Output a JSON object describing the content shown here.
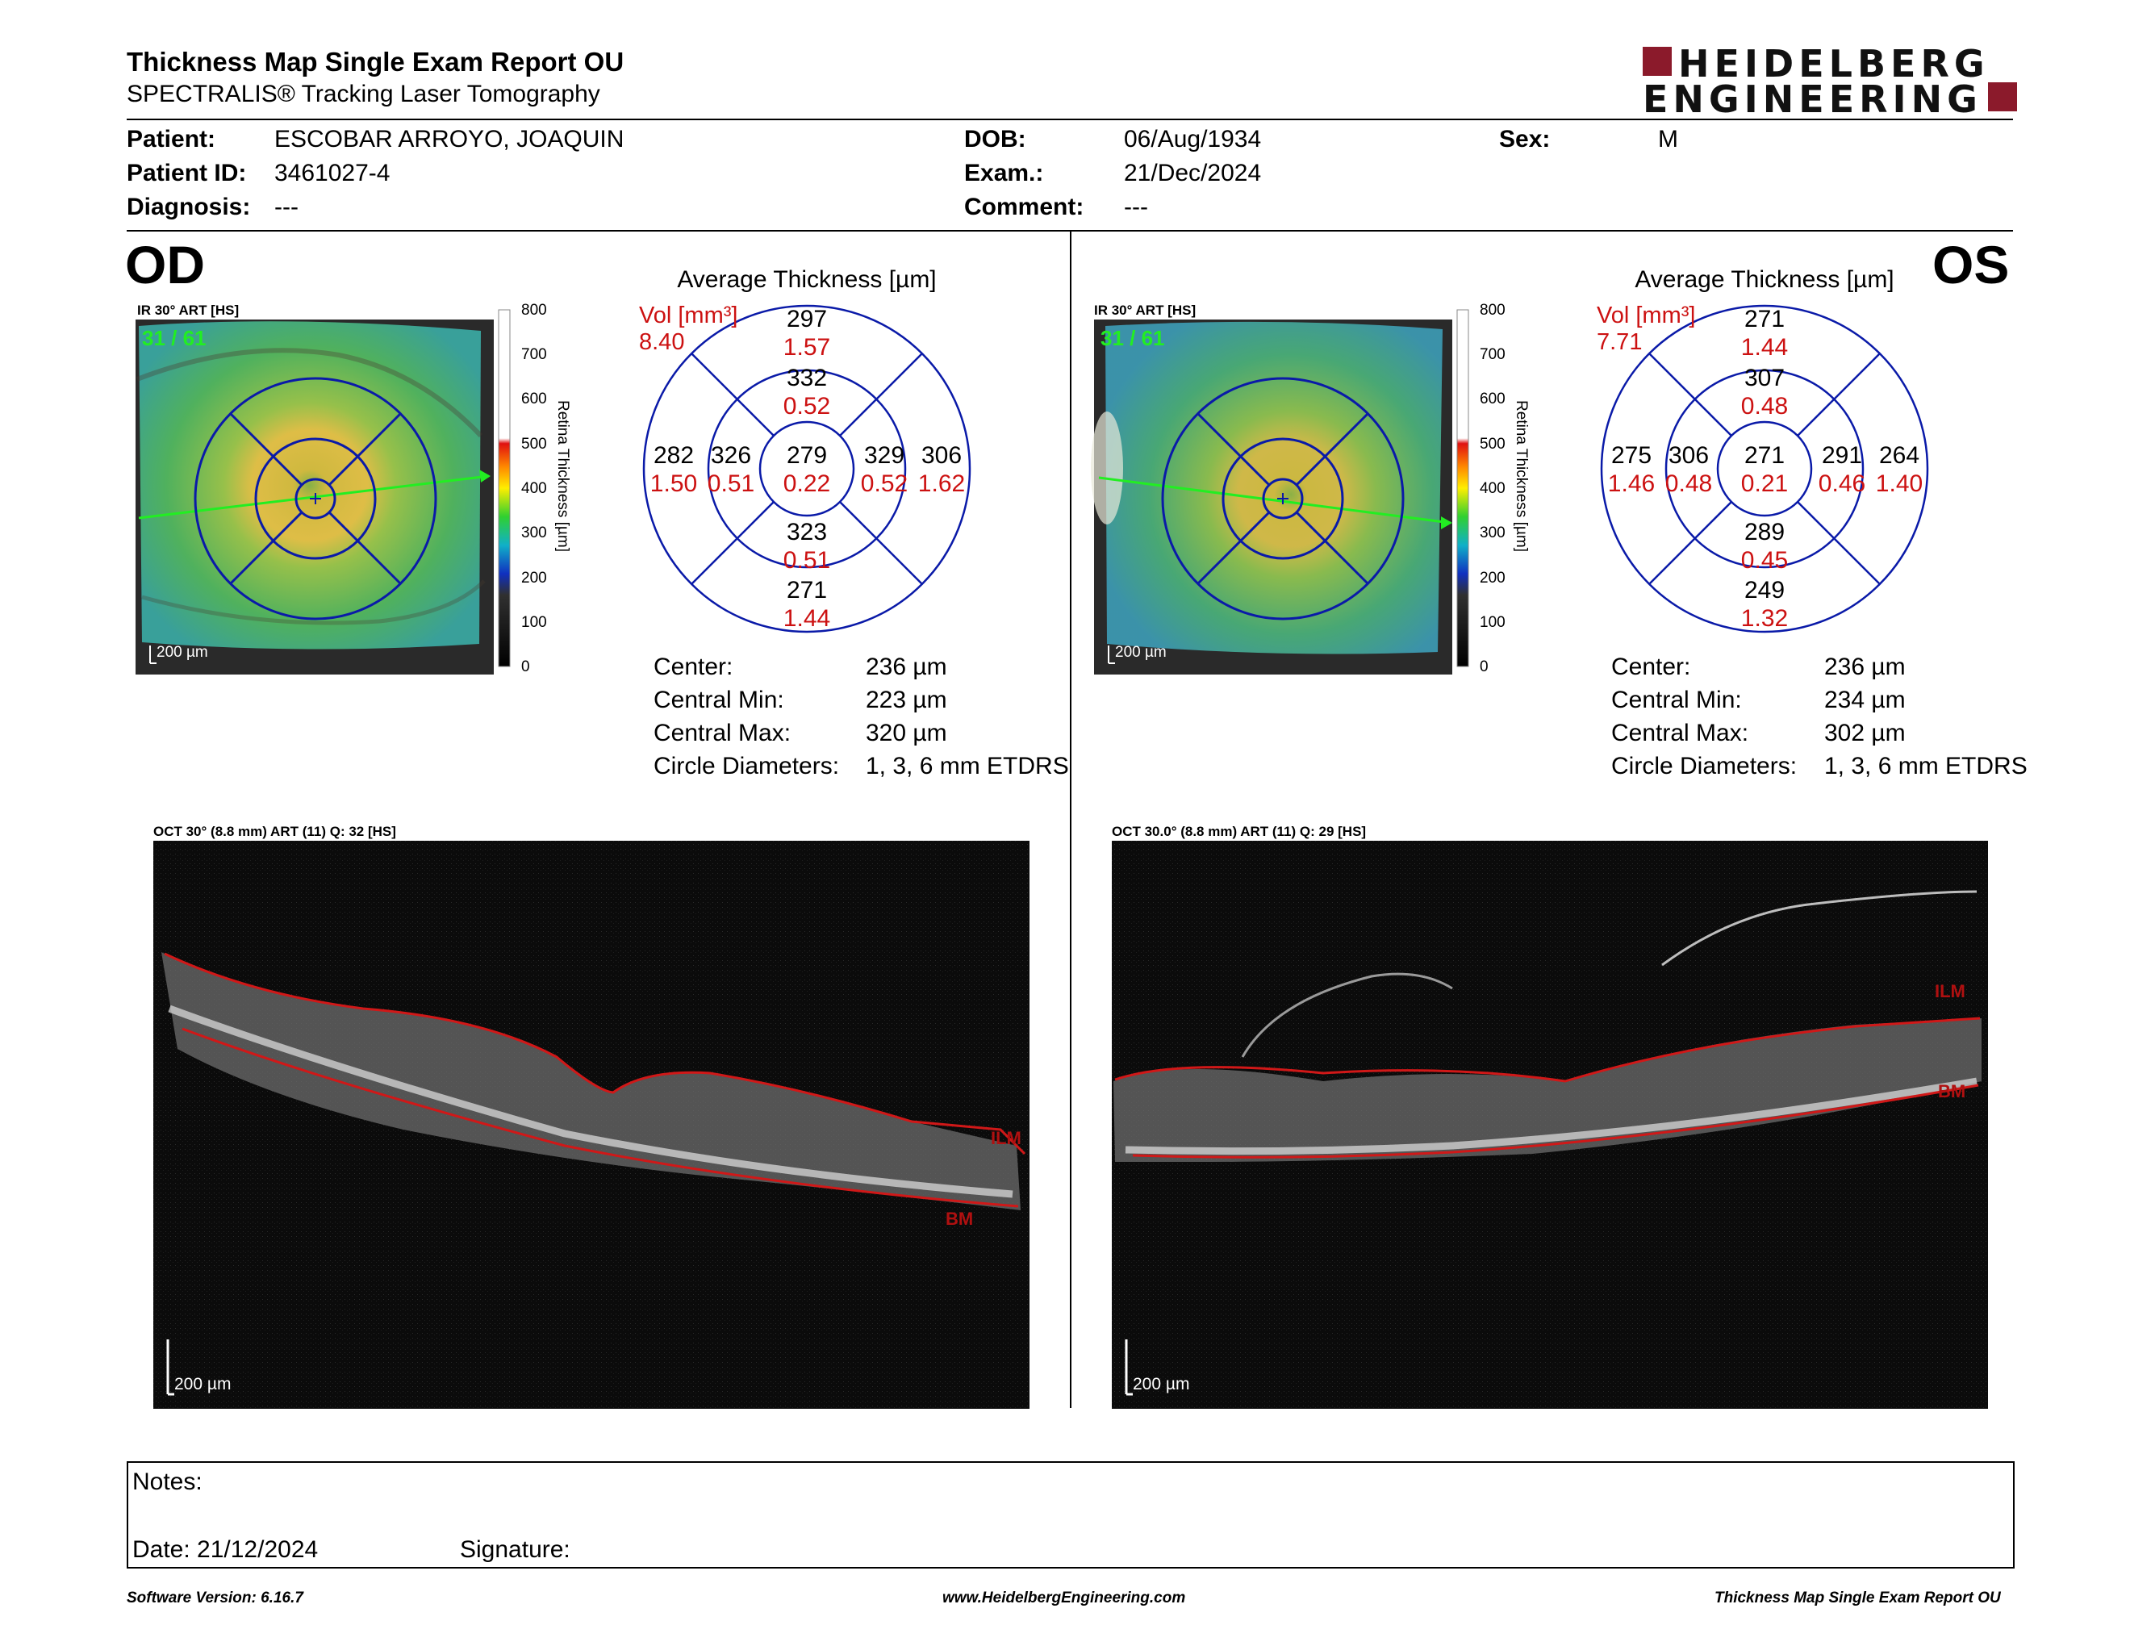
{
  "header": {
    "title": "Thickness Map Single Exam Report OU",
    "subtitle": "SPECTRALIS® Tracking Laser Tomography",
    "logo": {
      "line1": "HEIDELBERG",
      "line2": "ENGINEERING",
      "brand_color": "#8b1a2b"
    }
  },
  "patient": {
    "patient_label": "Patient:",
    "patient_value": "ESCOBAR ARROYO, JOAQUIN",
    "id_label": "Patient ID:",
    "id_value": "3461027-4",
    "diagnosis_label": "Diagnosis:",
    "diagnosis_value": "---",
    "dob_label": "DOB:",
    "dob_value": "06/Aug/1934",
    "exam_label": "Exam.:",
    "exam_value": "21/Dec/2024",
    "comment_label": "Comment:",
    "comment_value": "---",
    "sex_label": "Sex:",
    "sex_value": "M"
  },
  "od": {
    "eye": "OD",
    "ir_caption": "IR 30° ART [HS]",
    "frame": "31 / 61",
    "scale": "200 µm",
    "scale_ticks": [
      "800",
      "700",
      "600",
      "500",
      "400",
      "300",
      "200",
      "100",
      "0"
    ],
    "scale_title": "Retina Thickness [µm]",
    "avg_title": "Average Thickness [µm]",
    "vol_label": "Vol [mm³]",
    "vol_value": "8.40",
    "etdrs": {
      "center_t": "279",
      "center_v": "0.22",
      "inner_sup_t": "332",
      "inner_sup_v": "0.52",
      "inner_inf_t": "323",
      "inner_inf_v": "0.51",
      "inner_left_t": "326",
      "inner_left_v": "0.51",
      "inner_right_t": "329",
      "inner_right_v": "0.52",
      "outer_sup_t": "297",
      "outer_sup_v": "1.57",
      "outer_inf_t": "271",
      "outer_inf_v": "1.44",
      "outer_left_t": "282",
      "outer_left_v": "1.50",
      "outer_right_t": "306",
      "outer_right_v": "1.62"
    },
    "stats": {
      "center_label": "Center:",
      "center_value": "236 µm",
      "min_label": "Central Min:",
      "min_value": "223 µm",
      "max_label": "Central Max:",
      "max_value": "320 µm",
      "diam_label": "Circle Diameters:",
      "diam_value": "1, 3, 6 mm ETDRS"
    },
    "oct_caption": "OCT 30° (8.8 mm) ART (11) Q: 32 [HS]",
    "ilm": "ILM",
    "bm": "BM",
    "oct_scale": "200 µm"
  },
  "os": {
    "eye": "OS",
    "ir_caption": "IR 30° ART [HS]",
    "frame": "31 / 61",
    "scale": "200 µm",
    "scale_ticks": [
      "800",
      "700",
      "600",
      "500",
      "400",
      "300",
      "200",
      "100",
      "0"
    ],
    "scale_title": "Retina Thickness [µm]",
    "avg_title": "Average Thickness [µm]",
    "vol_label": "Vol [mm³]",
    "vol_value": "7.71",
    "etdrs": {
      "center_t": "271",
      "center_v": "0.21",
      "inner_sup_t": "307",
      "inner_sup_v": "0.48",
      "inner_inf_t": "289",
      "inner_inf_v": "0.45",
      "inner_left_t": "306",
      "inner_left_v": "0.48",
      "inner_right_t": "291",
      "inner_right_v": "0.46",
      "outer_sup_t": "271",
      "outer_sup_v": "1.44",
      "outer_inf_t": "249",
      "outer_inf_v": "1.32",
      "outer_left_t": "275",
      "outer_left_v": "1.46",
      "outer_right_t": "264",
      "outer_right_v": "1.40"
    },
    "stats": {
      "center_label": "Center:",
      "center_value": "236 µm",
      "min_label": "Central Min:",
      "min_value": "234 µm",
      "max_label": "Central Max:",
      "max_value": "302 µm",
      "diam_label": "Circle Diameters:",
      "diam_value": "1, 3, 6 mm ETDRS"
    },
    "oct_caption": "OCT 30.0° (8.8 mm) ART (11) Q: 29 [HS]",
    "ilm": "ILM",
    "bm": "BM",
    "oct_scale": "200 µm"
  },
  "notes": {
    "notes_label": "Notes:",
    "date_label": "Date: 21/12/2024",
    "signature_label": "Signature:"
  },
  "footer": {
    "software": "Software Version: 6.16.7",
    "website": "www.HeidelbergEngineering.com",
    "report": "Thickness Map Single Exam Report OU"
  },
  "colors": {
    "etdrs_blue": "#0a1aa8",
    "volume_red": "#cc1111",
    "layer_red": "#d01818"
  }
}
